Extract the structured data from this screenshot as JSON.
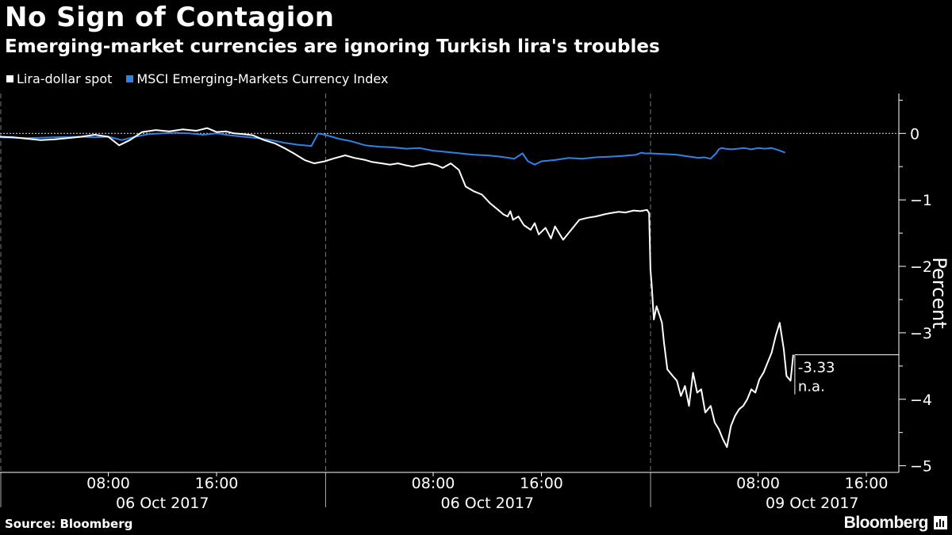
{
  "header": {
    "title": "No Sign of Contagion",
    "subtitle": "Emerging-market currencies are ignoring Turkish lira's troubles"
  },
  "footer": {
    "source": "Source: Bloomberg",
    "brand": "Bloomberg"
  },
  "chart_data": {
    "type": "line",
    "title": "No Sign of Contagion",
    "subtitle": "Emerging-market currencies are ignoring Turkish lira's troubles",
    "ylabel": "Percent",
    "ylim": [
      -5.1,
      0.6
    ],
    "y_ticks": [
      0,
      -1,
      -2,
      -3,
      -4,
      -5
    ],
    "grid": false,
    "zero_line": "dotted",
    "legend": "top-left",
    "x_unit": "session hours",
    "xlim": [
      0,
      66.4
    ],
    "x_ticks": [
      {
        "x": 8,
        "label": "08:00"
      },
      {
        "x": 16,
        "label": "16:00"
      },
      {
        "x": 32,
        "label": "08:00"
      },
      {
        "x": 40,
        "label": "16:00"
      },
      {
        "x": 56,
        "label": "08:00"
      },
      {
        "x": 64,
        "label": "16:00"
      }
    ],
    "day_labels": [
      {
        "x": 12,
        "label": "06 Oct 2017"
      },
      {
        "x": 36,
        "label": "06 Oct 2017"
      },
      {
        "x": 60,
        "label": "09 Oct 2017"
      }
    ],
    "separators": [
      0,
      24,
      48
    ],
    "end_annotation": {
      "label": "-3.33",
      "value": -3.33,
      "secondary": "n.a."
    },
    "series": [
      {
        "name": "Lira-dollar spot",
        "color": "#ffffff",
        "x": [
          0,
          1,
          2,
          3,
          4,
          5,
          6,
          7,
          8,
          8.8,
          9.6,
          10.5,
          11.5,
          12.5,
          13.5,
          14.5,
          15.3,
          16,
          16.7,
          17.3,
          18,
          18.7,
          19.5,
          20.3,
          21,
          21.7,
          22.5,
          23.2,
          24,
          24.6,
          25.5,
          26.2,
          27,
          27.5,
          28.2,
          28.8,
          29.4,
          30,
          30.5,
          31.1,
          31.7,
          32.3,
          32.7,
          33.3,
          33.9,
          34.4,
          35,
          35.6,
          36.2,
          36.8,
          37.2,
          37.5,
          37.7,
          37.9,
          38.3,
          38.7,
          39.2,
          39.5,
          39.8,
          40.3,
          40.7,
          41,
          41.6,
          42.2,
          42.8,
          43.4,
          44,
          44.6,
          45.1,
          45.7,
          46.2,
          46.8,
          47.3,
          47.8,
          47.95,
          48.05,
          48.15,
          48.3,
          48.5,
          48.75,
          48.9,
          49.05,
          49.3,
          49.7,
          50,
          50.3,
          50.6,
          50.9,
          51.2,
          51.5,
          51.8,
          52.1,
          52.5,
          52.8,
          53.1,
          53.4,
          53.7,
          54,
          54.3,
          54.6,
          54.9,
          55.2,
          55.5,
          55.8,
          56.1,
          56.4,
          56.7,
          57,
          57.3,
          57.6,
          57.9,
          58.1,
          58.4,
          58.6
        ],
        "values": [
          -0.05,
          -0.06,
          -0.08,
          -0.1,
          -0.09,
          -0.07,
          -0.05,
          -0.02,
          -0.05,
          -0.18,
          -0.1,
          0.02,
          0.05,
          0.03,
          0.06,
          0.04,
          0.08,
          0.02,
          0.03,
          0.0,
          -0.01,
          -0.03,
          -0.1,
          -0.15,
          -0.22,
          -0.3,
          -0.4,
          -0.45,
          -0.42,
          -0.38,
          -0.33,
          -0.37,
          -0.4,
          -0.43,
          -0.45,
          -0.47,
          -0.45,
          -0.48,
          -0.5,
          -0.47,
          -0.45,
          -0.48,
          -0.52,
          -0.45,
          -0.55,
          -0.8,
          -0.87,
          -0.92,
          -1.05,
          -1.15,
          -1.22,
          -1.25,
          -1.17,
          -1.3,
          -1.25,
          -1.38,
          -1.45,
          -1.35,
          -1.52,
          -1.42,
          -1.58,
          -1.4,
          -1.6,
          -1.45,
          -1.3,
          -1.27,
          -1.25,
          -1.22,
          -1.2,
          -1.18,
          -1.19,
          -1.16,
          -1.17,
          -1.15,
          -1.2,
          -2.05,
          -2.3,
          -2.8,
          -2.6,
          -2.75,
          -2.85,
          -3.15,
          -3.55,
          -3.65,
          -3.72,
          -3.95,
          -3.8,
          -4.1,
          -3.6,
          -3.9,
          -3.85,
          -4.2,
          -4.1,
          -4.35,
          -4.45,
          -4.6,
          -4.72,
          -4.4,
          -4.25,
          -4.15,
          -4.1,
          -4.0,
          -3.85,
          -3.9,
          -3.7,
          -3.6,
          -3.45,
          -3.3,
          -3.05,
          -2.85,
          -3.25,
          -3.65,
          -3.72,
          -3.33
        ]
      },
      {
        "name": "MSCI Emerging-Markets Currency Index",
        "color": "#2e82e8",
        "x": [
          0,
          2,
          4,
          6,
          7,
          8,
          9,
          10,
          11,
          12,
          13,
          14,
          15,
          16,
          17,
          18,
          19,
          20,
          21,
          22,
          23,
          23.1,
          23.5,
          24,
          25,
          26,
          27,
          28,
          29,
          30,
          31,
          32,
          33,
          34,
          35,
          36,
          37,
          38,
          38.6,
          39,
          39.5,
          40,
          41,
          42,
          43,
          44,
          45,
          46,
          47,
          47.4,
          47.6,
          48,
          49,
          50,
          51,
          51.6,
          52,
          52.5,
          52.9,
          53.1,
          53.3,
          53.6,
          54,
          54.5,
          55,
          55.5,
          56,
          56.5,
          57,
          57.5,
          58
        ],
        "values": [
          -0.06,
          -0.07,
          -0.06,
          -0.05,
          -0.06,
          -0.05,
          -0.1,
          -0.05,
          -0.01,
          0.0,
          0.01,
          0.0,
          -0.02,
          0.0,
          -0.03,
          -0.05,
          -0.07,
          -0.1,
          -0.14,
          -0.17,
          -0.19,
          -0.15,
          0.0,
          -0.02,
          -0.08,
          -0.12,
          -0.18,
          -0.2,
          -0.21,
          -0.23,
          -0.22,
          -0.26,
          -0.28,
          -0.3,
          -0.32,
          -0.33,
          -0.35,
          -0.38,
          -0.3,
          -0.42,
          -0.47,
          -0.42,
          -0.4,
          -0.37,
          -0.38,
          -0.36,
          -0.35,
          -0.34,
          -0.32,
          -0.29,
          -0.3,
          -0.3,
          -0.31,
          -0.32,
          -0.35,
          -0.37,
          -0.36,
          -0.38,
          -0.3,
          -0.24,
          -0.22,
          -0.23,
          -0.24,
          -0.23,
          -0.22,
          -0.24,
          -0.22,
          -0.23,
          -0.22,
          -0.25,
          -0.29
        ]
      }
    ]
  }
}
